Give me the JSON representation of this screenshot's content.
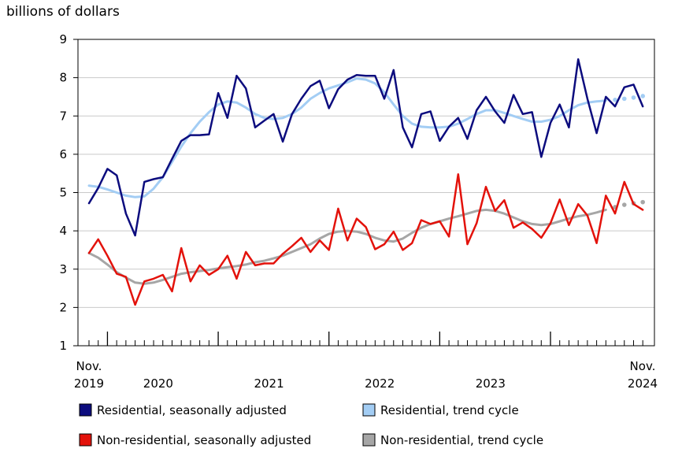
{
  "chart_data": {
    "type": "line",
    "ylabel": "billions of dollars",
    "ylim": [
      1,
      9
    ],
    "y_ticks": [
      1,
      2,
      3,
      4,
      5,
      6,
      7,
      8,
      9
    ],
    "x_start_label": {
      "month": "Nov.",
      "year": "2019"
    },
    "x_end_label": {
      "month": "Nov.",
      "year": "2024"
    },
    "x_year_labels": [
      "2020",
      "2021",
      "2022",
      "2023"
    ],
    "x": [
      "2019-11",
      "2019-12",
      "2020-01",
      "2020-02",
      "2020-03",
      "2020-04",
      "2020-05",
      "2020-06",
      "2020-07",
      "2020-08",
      "2020-09",
      "2020-10",
      "2020-11",
      "2020-12",
      "2021-01",
      "2021-02",
      "2021-03",
      "2021-04",
      "2021-05",
      "2021-06",
      "2021-07",
      "2021-08",
      "2021-09",
      "2021-10",
      "2021-11",
      "2021-12",
      "2022-01",
      "2022-02",
      "2022-03",
      "2022-04",
      "2022-05",
      "2022-06",
      "2022-07",
      "2022-08",
      "2022-09",
      "2022-10",
      "2022-11",
      "2022-12",
      "2023-01",
      "2023-02",
      "2023-03",
      "2023-04",
      "2023-05",
      "2023-06",
      "2023-07",
      "2023-08",
      "2023-09",
      "2023-10",
      "2023-11",
      "2023-12",
      "2024-01",
      "2024-02",
      "2024-03",
      "2024-04",
      "2024-05",
      "2024-06",
      "2024-07",
      "2024-08",
      "2024-09",
      "2024-10",
      "2024-11"
    ],
    "series": [
      {
        "name": "Residential, seasonally adjusted",
        "color": "#0c0c7e",
        "style": "solid",
        "values": [
          4.72,
          5.12,
          5.62,
          5.45,
          4.45,
          3.88,
          5.28,
          5.35,
          5.4,
          5.88,
          6.35,
          6.5,
          6.5,
          6.52,
          7.6,
          6.95,
          8.05,
          7.72,
          6.7,
          6.88,
          7.05,
          6.33,
          7.05,
          7.45,
          7.78,
          7.92,
          7.2,
          7.7,
          7.95,
          8.07,
          8.05,
          8.05,
          7.45,
          8.2,
          6.7,
          6.18,
          7.05,
          7.12,
          6.35,
          6.72,
          6.95,
          6.4,
          7.15,
          7.5,
          7.12,
          6.82,
          7.55,
          7.05,
          7.1,
          5.93,
          6.82,
          7.3,
          6.7,
          8.48,
          7.45,
          6.55,
          7.5,
          7.25,
          7.75,
          7.82,
          7.25
        ]
      },
      {
        "name": "Residential, trend cycle",
        "color": "#a3cdf4",
        "style": "solid",
        "dotted_last": 4,
        "values": [
          5.18,
          5.15,
          5.08,
          5.0,
          4.92,
          4.88,
          4.9,
          5.1,
          5.4,
          5.8,
          6.2,
          6.55,
          6.85,
          7.1,
          7.3,
          7.38,
          7.35,
          7.22,
          7.05,
          6.95,
          6.92,
          6.95,
          7.05,
          7.22,
          7.45,
          7.6,
          7.72,
          7.8,
          7.88,
          7.98,
          7.95,
          7.85,
          7.62,
          7.3,
          7.0,
          6.8,
          6.72,
          6.7,
          6.7,
          6.72,
          6.8,
          6.92,
          7.05,
          7.15,
          7.15,
          7.08,
          7.0,
          6.92,
          6.85,
          6.85,
          6.9,
          7.0,
          7.15,
          7.28,
          7.35,
          7.38,
          7.4,
          7.42,
          7.45,
          7.48,
          7.52
        ]
      },
      {
        "name": "Non-residential, seasonally adjusted",
        "color": "#e3120b",
        "style": "solid",
        "values": [
          3.42,
          3.78,
          3.35,
          2.88,
          2.8,
          2.07,
          2.68,
          2.75,
          2.85,
          2.42,
          3.55,
          2.68,
          3.1,
          2.85,
          3.0,
          3.35,
          2.75,
          3.45,
          3.1,
          3.15,
          3.15,
          3.4,
          3.6,
          3.82,
          3.45,
          3.75,
          3.5,
          4.58,
          3.75,
          4.32,
          4.1,
          3.52,
          3.65,
          3.98,
          3.5,
          3.68,
          4.28,
          4.18,
          4.25,
          3.85,
          5.48,
          3.65,
          4.2,
          5.15,
          4.52,
          4.8,
          4.08,
          4.22,
          4.05,
          3.82,
          4.2,
          4.82,
          4.15,
          4.7,
          4.4,
          3.68,
          4.92,
          4.45,
          5.28,
          4.7,
          4.55
        ]
      },
      {
        "name": "Non-residential, trend cycle",
        "color": "#a6a6a6",
        "style": "solid",
        "dotted_last": 4,
        "values": [
          3.42,
          3.3,
          3.12,
          2.92,
          2.78,
          2.65,
          2.62,
          2.65,
          2.72,
          2.8,
          2.88,
          2.92,
          2.95,
          2.98,
          3.02,
          3.05,
          3.08,
          3.12,
          3.18,
          3.22,
          3.28,
          3.35,
          3.45,
          3.55,
          3.65,
          3.8,
          3.92,
          3.98,
          4.0,
          3.98,
          3.92,
          3.82,
          3.75,
          3.72,
          3.8,
          3.95,
          4.08,
          4.18,
          4.25,
          4.32,
          4.38,
          4.45,
          4.52,
          4.55,
          4.52,
          4.45,
          4.35,
          4.25,
          4.18,
          4.15,
          4.18,
          4.25,
          4.32,
          4.38,
          4.42,
          4.48,
          4.55,
          4.62,
          4.68,
          4.72,
          4.75
        ]
      }
    ],
    "legend": [
      {
        "label": "Residential, seasonally adjusted",
        "color": "#0c0c7e"
      },
      {
        "label": "Residential, trend cycle",
        "color": "#a3cdf4"
      },
      {
        "label": "Non-residential, seasonally adjusted",
        "color": "#e3120b"
      },
      {
        "label": "Non-residential, trend cycle",
        "color": "#a6a6a6"
      }
    ]
  }
}
